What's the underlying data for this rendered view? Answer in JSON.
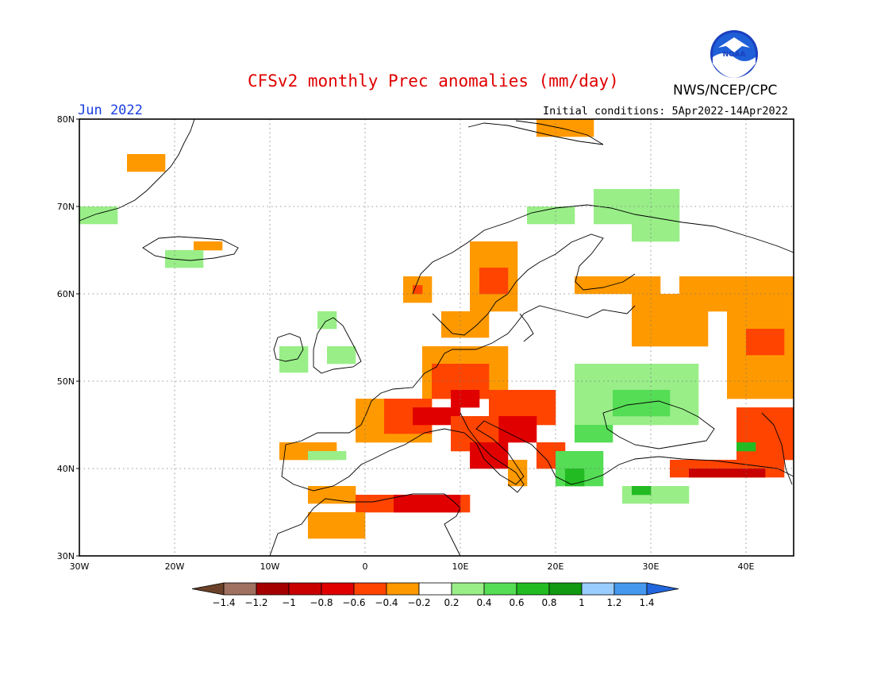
{
  "title": "CFSv2 monthly Prec anomalies (mm/day)",
  "date_label": "Jun 2022",
  "agency": "NWS/NCEP/CPC",
  "logo_text": "NOAA",
  "initial_conditions": "Initial conditions: 5Apr2022-14Apr2022",
  "map": {
    "lon_range": [
      -30,
      45
    ],
    "lat_range": [
      30,
      80
    ],
    "lon_ticks": [
      {
        "value": -30,
        "label": "30W"
      },
      {
        "value": -20,
        "label": "20W"
      },
      {
        "value": -10,
        "label": "10W"
      },
      {
        "value": 0,
        "label": "0"
      },
      {
        "value": 10,
        "label": "10E"
      },
      {
        "value": 20,
        "label": "20E"
      },
      {
        "value": 30,
        "label": "30E"
      },
      {
        "value": 40,
        "label": "40E"
      }
    ],
    "lat_ticks": [
      {
        "value": 30,
        "label": "30N"
      },
      {
        "value": 40,
        "label": "40N"
      },
      {
        "value": 50,
        "label": "50N"
      },
      {
        "value": 60,
        "label": "60N"
      },
      {
        "value": 70,
        "label": "70N"
      },
      {
        "value": 80,
        "label": "80N"
      }
    ],
    "grid": "dotted",
    "cell_size_deg": 1,
    "anomaly_regions": [
      {
        "name": "Greenland east",
        "lon": [
          -25,
          -21
        ],
        "lat": [
          74,
          76
        ],
        "value": -0.3
      },
      {
        "name": "Greenland south",
        "lon": [
          -30,
          -26
        ],
        "lat": [
          68,
          70
        ],
        "value": 0.3
      },
      {
        "name": "Iceland east",
        "lon": [
          -18,
          -15
        ],
        "lat": [
          65,
          66
        ],
        "value": -0.3
      },
      {
        "name": "Iceland south",
        "lon": [
          -21,
          -17
        ],
        "lat": [
          63,
          65
        ],
        "value": 0.3
      },
      {
        "name": "Svalbard",
        "lon": [
          18,
          24
        ],
        "lat": [
          78,
          80
        ],
        "value": -0.3
      },
      {
        "name": "Norway coast",
        "lon": [
          4,
          7
        ],
        "lat": [
          59,
          62
        ],
        "value": -0.3
      },
      {
        "name": "Norway coast core",
        "lon": [
          5,
          6
        ],
        "lat": [
          60,
          61
        ],
        "value": -0.5
      },
      {
        "name": "Norway mountains",
        "lon": [
          11,
          16
        ],
        "lat": [
          58,
          66
        ],
        "value": -0.3
      },
      {
        "name": "Norway core",
        "lon": [
          12,
          15
        ],
        "lat": [
          60,
          63
        ],
        "value": -0.5
      },
      {
        "name": "South Scandinavia",
        "lon": [
          8,
          13
        ],
        "lat": [
          55,
          58
        ],
        "value": -0.3
      },
      {
        "name": "Scandinavia north",
        "lon": [
          17,
          22
        ],
        "lat": [
          68,
          70
        ],
        "value": 0.3
      },
      {
        "name": "Finnish Lapland",
        "lon": [
          24,
          33
        ],
        "lat": [
          68,
          72
        ],
        "value": 0.3
      },
      {
        "name": "Kola",
        "lon": [
          28,
          33
        ],
        "lat": [
          66,
          68
        ],
        "value": 0.3
      },
      {
        "name": "Baltic east",
        "lon": [
          22,
          31
        ],
        "lat": [
          60,
          62
        ],
        "value": -0.3
      },
      {
        "name": "Western Russia",
        "lon": [
          28,
          36
        ],
        "lat": [
          54,
          60
        ],
        "value": -0.3
      },
      {
        "name": "Russia east",
        "lon": [
          33,
          45
        ],
        "lat": [
          58,
          62
        ],
        "value": -0.3
      },
      {
        "name": "Volga",
        "lon": [
          38,
          45
        ],
        "lat": [
          48,
          58
        ],
        "value": -0.3
      },
      {
        "name": "Volga core",
        "lon": [
          40,
          44
        ],
        "lat": [
          53,
          56
        ],
        "value": -0.5
      },
      {
        "name": "Ireland",
        "lon": [
          -9,
          -6
        ],
        "lat": [
          51,
          54
        ],
        "value": 0.3
      },
      {
        "name": "Wales",
        "lon": [
          -4,
          -1
        ],
        "lat": [
          52,
          54
        ],
        "value": 0.3
      },
      {
        "name": "Scotland",
        "lon": [
          -5,
          -3
        ],
        "lat": [
          56,
          58
        ],
        "value": 0.3
      },
      {
        "name": "Germany",
        "lon": [
          6,
          15
        ],
        "lat": [
          48,
          54
        ],
        "value": -0.3
      },
      {
        "name": "Germany core",
        "lon": [
          7,
          13
        ],
        "lat": [
          48,
          52
        ],
        "value": -0.5
      },
      {
        "name": "Bavaria",
        "lon": [
          9,
          12
        ],
        "lat": [
          47,
          49
        ],
        "value": -0.7
      },
      {
        "name": "France",
        "lon": [
          -1,
          7
        ],
        "lat": [
          43,
          48
        ],
        "value": -0.3
      },
      {
        "name": "France core",
        "lon": [
          2,
          7
        ],
        "lat": [
          44,
          48
        ],
        "value": -0.5
      },
      {
        "name": "Alps",
        "lon": [
          5,
          10
        ],
        "lat": [
          45,
          47
        ],
        "value": -0.7
      },
      {
        "name": "Czechia Austria",
        "lon": [
          13,
          20
        ],
        "lat": [
          45,
          49
        ],
        "value": -0.5
      },
      {
        "name": "Croatia",
        "lon": [
          14,
          18
        ],
        "lat": [
          43,
          46
        ],
        "value": -0.7
      },
      {
        "name": "Italy north",
        "lon": [
          9,
          14
        ],
        "lat": [
          42,
          46
        ],
        "value": -0.5
      },
      {
        "name": "Italy central",
        "lon": [
          11,
          15
        ],
        "lat": [
          40,
          43
        ],
        "value": -0.7
      },
      {
        "name": "Italy south",
        "lon": [
          15,
          17
        ],
        "lat": [
          38,
          41
        ],
        "value": -0.3
      },
      {
        "name": "Balkans west",
        "lon": [
          18,
          21
        ],
        "lat": [
          40,
          43
        ],
        "value": -0.5
      },
      {
        "name": "Balkans green",
        "lon": [
          20,
          25
        ],
        "lat": [
          38,
          42
        ],
        "value": 0.4
      },
      {
        "name": "Greece",
        "lon": [
          21,
          23
        ],
        "lat": [
          38,
          40
        ],
        "value": 0.6
      },
      {
        "name": "Ukraine",
        "lon": [
          22,
          35
        ],
        "lat": [
          45,
          52
        ],
        "value": 0.3
      },
      {
        "name": "Ukraine core",
        "lon": [
          26,
          32
        ],
        "lat": [
          46,
          49
        ],
        "value": 0.4
      },
      {
        "name": "Black Sea north",
        "lon": [
          22,
          26
        ],
        "lat": [
          43,
          45
        ],
        "value": 0.4
      },
      {
        "name": "Caucasus",
        "lon": [
          39,
          45
        ],
        "lat": [
          41,
          47
        ],
        "value": -0.5
      },
      {
        "name": "Caucasus green",
        "lon": [
          39,
          41
        ],
        "lat": [
          42,
          43
        ],
        "value": 0.7
      },
      {
        "name": "Turkey north",
        "lon": [
          32,
          44
        ],
        "lat": [
          39,
          41
        ],
        "value": -0.5
      },
      {
        "name": "Turkey core",
        "lon": [
          34,
          42
        ],
        "lat": [
          39,
          40
        ],
        "value": -0.9
      },
      {
        "name": "Turkey southwest",
        "lon": [
          27,
          34
        ],
        "lat": [
          36,
          38
        ],
        "value": 0.3
      },
      {
        "name": "Aegean",
        "lon": [
          28,
          30
        ],
        "lat": [
          37,
          38
        ],
        "value": 0.7
      },
      {
        "name": "Spain north",
        "lon": [
          -9,
          -3
        ],
        "lat": [
          41,
          43
        ],
        "value": -0.3
      },
      {
        "name": "Spain central",
        "lon": [
          -6,
          -2
        ],
        "lat": [
          41,
          42
        ],
        "value": 0.3
      },
      {
        "name": "Spain south",
        "lon": [
          -6,
          -1
        ],
        "lat": [
          36,
          38
        ],
        "value": -0.3
      },
      {
        "name": "Algeria",
        "lon": [
          -1,
          11
        ],
        "lat": [
          35,
          37
        ],
        "value": -0.5
      },
      {
        "name": "Algeria core",
        "lon": [
          3,
          10
        ],
        "lat": [
          35,
          37
        ],
        "value": -0.7
      },
      {
        "name": "Morocco",
        "lon": [
          -6,
          0
        ],
        "lat": [
          32,
          35
        ],
        "value": -0.3
      }
    ]
  },
  "colorbar": {
    "bins": [
      {
        "value": -1.4,
        "color": "#6b4129"
      },
      {
        "value": -1.2,
        "color": "#b27f6c"
      },
      {
        "value": -1.0,
        "color": "#a50000"
      },
      {
        "value": -0.8,
        "color": "#c90000"
      },
      {
        "value": -0.6,
        "color": "#ff3300"
      },
      {
        "value": -0.4,
        "color": "#ff9900"
      },
      {
        "value": -0.2,
        "color": "#ffffff"
      },
      {
        "value": 0.2,
        "color": "#99ee88"
      },
      {
        "value": 0.4,
        "color": "#55dd55"
      },
      {
        "value": 0.6,
        "color": "#22bb22"
      },
      {
        "value": 0.8,
        "color": "#119911"
      },
      {
        "value": 1.0,
        "color": "#99ccff"
      },
      {
        "value": 1.2,
        "color": "#4499ee"
      },
      {
        "value": 1.4,
        "color": "#2266dd"
      }
    ],
    "labels": [
      "-1.4",
      "-1.2",
      "-1",
      "-0.8",
      "-0.6",
      "-0.4",
      "-0.2",
      "0.2",
      "0.4",
      "0.6",
      "0.8",
      "1",
      "1.2",
      "1.4"
    ],
    "colors": [
      "#6b4129",
      "#a07060",
      "#a50000",
      "#c90000",
      "#e00000",
      "#ff4400",
      "#ff9900",
      "#ffffff",
      "#99ee88",
      "#55dd55",
      "#22bb22",
      "#119911",
      "#99ccff",
      "#4499ee",
      "#2266dd"
    ]
  }
}
